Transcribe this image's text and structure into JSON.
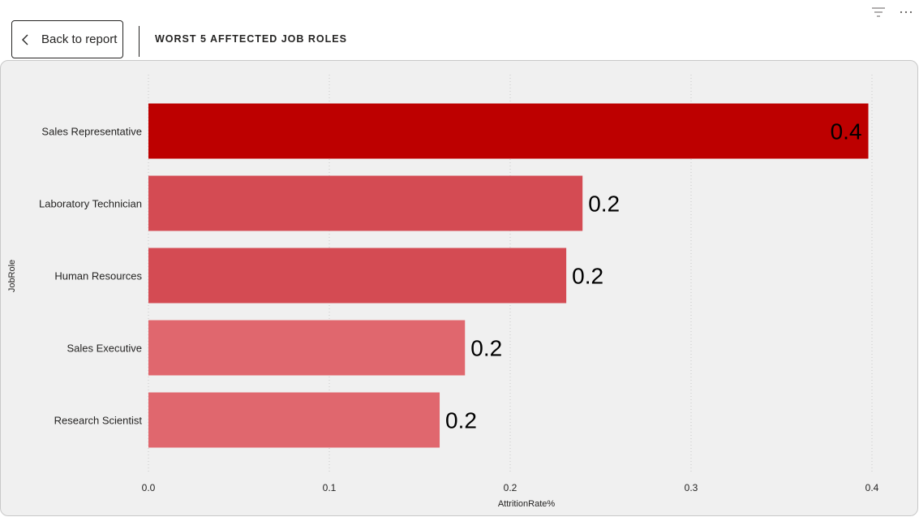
{
  "header": {
    "back_label": "Back to report",
    "title": "WORST 5 AFFTECTED JOB ROLES",
    "icons": [
      "back-chevron-icon",
      "filter-icon",
      "more-options-icon"
    ]
  },
  "chart_data": {
    "type": "bar",
    "orientation": "horizontal",
    "title": "WORST 5 AFFTECTED JOB ROLES",
    "xlabel": "AttritionRate%",
    "ylabel": "JobRole",
    "categories": [
      "Sales Representative",
      "Laboratory Technician",
      "Human Resources",
      "Sales Executive",
      "Research Scientist"
    ],
    "values": [
      0.398,
      0.24,
      0.231,
      0.175,
      0.161
    ],
    "data_labels": [
      "0.4",
      "0.2",
      "0.2",
      "0.2",
      "0.2"
    ],
    "colors": [
      "#bd0000",
      "#d44b53",
      "#d44b53",
      "#e0676e",
      "#e0676e"
    ],
    "xlim": [
      0,
      0.4
    ],
    "xticks": [
      "0.0",
      "0.1",
      "0.2",
      "0.3",
      "0.4"
    ],
    "grid": true
  }
}
